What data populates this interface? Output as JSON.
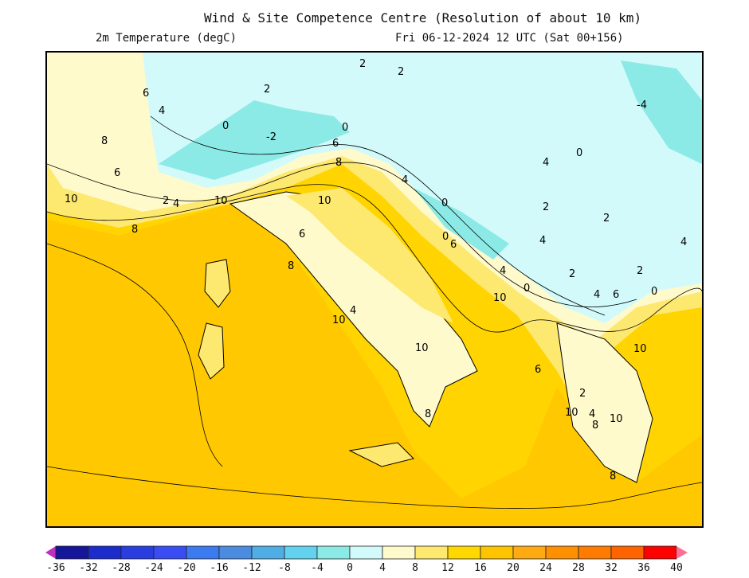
{
  "header": {
    "title": "Wind & Site Competence Centre (Resolution of about 10 km)",
    "parameter": "2m Temperature (degC)",
    "valid_time": "Fri 06-12-2024 12 UTC (Sat 00+156)"
  },
  "colorbar": {
    "ticks": [
      "-36",
      "-32",
      "-28",
      "-24",
      "-20",
      "-16",
      "-12",
      "-8",
      "-4",
      "0",
      "4",
      "8",
      "12",
      "16",
      "20",
      "24",
      "28",
      "32",
      "36",
      "40"
    ],
    "colors": [
      "#16169a",
      "#1c2ccc",
      "#2a3ee0",
      "#3a4cf4",
      "#3c7af0",
      "#4c8ce0",
      "#50aee6",
      "#62d2ee",
      "#8ceae6",
      "#d2fafa",
      "#fffacc",
      "#fde870",
      "#ffd800",
      "#ffc400",
      "#ffaa10",
      "#ff9000",
      "#ff7c00",
      "#ff6400",
      "#ff0000"
    ],
    "under_color": "#c030c0",
    "over_color": "#ff7090"
  },
  "map": {
    "contour_labels": [
      "6",
      "4",
      "8",
      "6",
      "10",
      "2",
      "4",
      "10",
      "8",
      "0",
      "-2",
      "2",
      "0",
      "6",
      "8",
      "10",
      "2",
      "2",
      "4",
      "-4",
      "0",
      "4",
      "2",
      "2",
      "0",
      "4",
      "0",
      "6",
      "8",
      "6",
      "4",
      "2",
      "0",
      "10",
      "4",
      "6",
      "10",
      "4",
      "10",
      "6",
      "2",
      "10",
      "4",
      "8",
      "10",
      "8",
      "8",
      "4",
      "10",
      "2",
      "0"
    ]
  }
}
